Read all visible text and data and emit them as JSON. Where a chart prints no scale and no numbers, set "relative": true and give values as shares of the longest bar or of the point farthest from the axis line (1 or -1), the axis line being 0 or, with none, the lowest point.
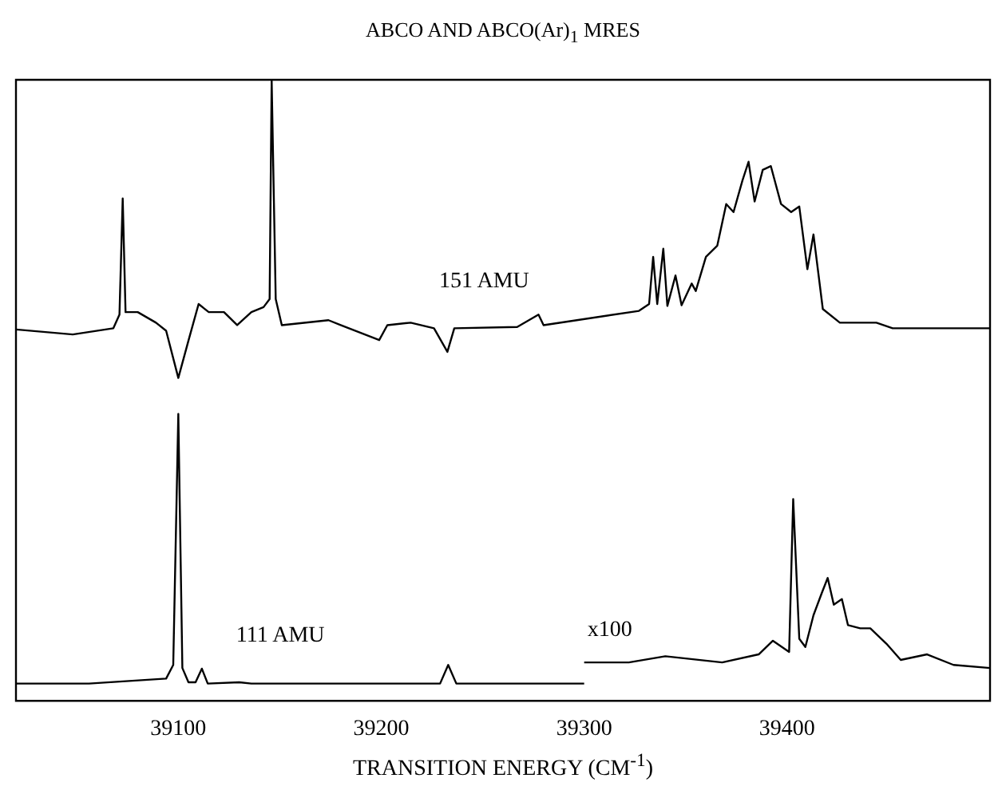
{
  "chart_data": {
    "type": "line",
    "title": "ABCO AND ABCO(Ar)$_{1}$ MRES",
    "xlabel": "TRANSITION ENERGY (CM$^{-1}$)",
    "relative": true,
    "xlim": [
      39020,
      39500
    ],
    "xticks": [
      39100,
      39200,
      39300,
      39400
    ],
    "grid": false,
    "legend": false,
    "marker": "none",
    "line_style": "solid",
    "series": [
      {
        "name": "151 AMU",
        "color": "#000000",
        "x": [
          39020,
          39048,
          39068,
          39071,
          39072.6,
          39074,
          39080,
          39089,
          39094,
          39100,
          39105,
          39110,
          39115,
          39122.5,
          39129,
          39136,
          39142,
          39145,
          39146,
          39148,
          39151,
          39174,
          39180,
          39199,
          39203,
          39214.5,
          39226,
          39232.6,
          39236,
          39267,
          39277.5,
          39280,
          39327,
          39332,
          39334,
          39336,
          39339,
          39341,
          39345,
          39348,
          39353,
          39355,
          39360,
          39365.6,
          39370,
          39373.6,
          39378,
          39381,
          39384,
          39388,
          39392,
          39397,
          39402,
          39406,
          39410,
          39413,
          39417.6,
          39426,
          39444,
          39452,
          39500
        ],
        "values": [
          0.598,
          0.59,
          0.6,
          0.622,
          0.809,
          0.626,
          0.626,
          0.609,
          0.596,
          0.52,
          0.58,
          0.639,
          0.626,
          0.626,
          0.605,
          0.626,
          0.634,
          0.647,
          1,
          0.647,
          0.605,
          0.613,
          0.605,
          0.581,
          0.605,
          0.609,
          0.6,
          0.562,
          0.6,
          0.602,
          0.622,
          0.605,
          0.628,
          0.639,
          0.715,
          0.639,
          0.728,
          0.636,
          0.685,
          0.637,
          0.672,
          0.66,
          0.715,
          0.733,
          0.8,
          0.787,
          0.838,
          0.868,
          0.804,
          0.855,
          0.861,
          0.8,
          0.787,
          0.796,
          0.695,
          0.751,
          0.631,
          0.609,
          0.609,
          0.6,
          0.6
        ]
      },
      {
        "name": "111 AMU",
        "color": "#000000",
        "x": [
          39020,
          39056,
          39094,
          39097.5,
          39100,
          39102,
          39105,
          39108.5,
          39111.6,
          39114.5,
          39130,
          39136,
          39229,
          39233,
          39237,
          39267,
          39300
        ],
        "values": [
          0.028,
          0.028,
          0.036,
          0.058,
          0.462,
          0.053,
          0.03,
          0.03,
          0.052,
          0.028,
          0.03,
          0.028,
          0.028,
          0.058,
          0.028,
          0.028,
          0.028
        ]
      },
      {
        "color": "#000000",
        "x": [
          39300,
          39322,
          39340,
          39368,
          39386,
          39393,
          39401,
          39403,
          39406,
          39409,
          39413,
          39417,
          39420,
          39423,
          39427,
          39430,
          39436,
          39441,
          39449,
          39456,
          39469,
          39482,
          39500
        ],
        "values": [
          0.062,
          0.062,
          0.072,
          0.062,
          0.075,
          0.097,
          0.079,
          0.325,
          0.1,
          0.087,
          0.138,
          0.173,
          0.198,
          0.155,
          0.164,
          0.122,
          0.117,
          0.117,
          0.092,
          0.066,
          0.075,
          0.058,
          0.053
        ]
      }
    ],
    "annotations": [
      "x100"
    ]
  }
}
